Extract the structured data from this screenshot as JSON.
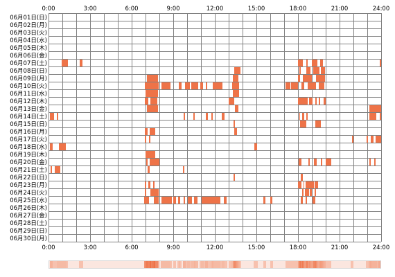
{
  "chart_data": {
    "type": "heatmap",
    "x_ticks": [
      "0:00",
      "3:00",
      "6:00",
      "9:00",
      "12:00",
      "15:00",
      "18:00",
      "21:00",
      "24:00"
    ],
    "x_range_hours": [
      0,
      24
    ],
    "grid": true,
    "rows": [
      {
        "label": "06月01日(日)",
        "spans": []
      },
      {
        "label": "06月02日(月)",
        "spans": []
      },
      {
        "label": "06月03日(火)",
        "spans": []
      },
      {
        "label": "06月04日(水)",
        "spans": []
      },
      {
        "label": "06月05日(木)",
        "spans": []
      },
      {
        "label": "06月06日(金)",
        "spans": []
      },
      {
        "label": "06月07日(土)",
        "spans": [
          [
            0.95,
            1.4
          ],
          [
            2.25,
            2.45
          ],
          [
            18.0,
            18.35
          ],
          [
            18.6,
            18.7
          ],
          [
            19.0,
            19.4
          ],
          [
            19.6,
            19.8
          ],
          [
            23.9,
            24.0
          ]
        ]
      },
      {
        "label": "06月08日(日)",
        "spans": [
          [
            13.4,
            13.85
          ],
          [
            18.1,
            18.2
          ],
          [
            18.6,
            18.9
          ],
          [
            19.1,
            19.55
          ],
          [
            19.65,
            19.95
          ]
        ]
      },
      {
        "label": "06月09日(月)",
        "spans": [
          [
            7.1,
            7.9
          ],
          [
            13.3,
            13.7
          ],
          [
            18.0,
            18.15
          ],
          [
            18.35,
            19.0
          ],
          [
            19.3,
            19.95
          ]
        ]
      },
      {
        "label": "06月10日(火)",
        "spans": [
          [
            6.95,
            7.95
          ],
          [
            8.15,
            8.8
          ],
          [
            9.4,
            9.6
          ],
          [
            9.85,
            10.2
          ],
          [
            10.3,
            10.8
          ],
          [
            10.95,
            11.15
          ],
          [
            11.35,
            11.45
          ],
          [
            11.85,
            12.55
          ],
          [
            13.25,
            13.75
          ],
          [
            17.1,
            17.45
          ],
          [
            17.5,
            18.0
          ],
          [
            18.25,
            18.45
          ],
          [
            18.7,
            19.3
          ],
          [
            19.5,
            19.9
          ]
        ]
      },
      {
        "label": "06月11日(水)",
        "spans": [
          [
            7.0,
            7.9
          ],
          [
            13.3,
            13.75
          ]
        ]
      },
      {
        "label": "06月12日(木)",
        "spans": [
          [
            6.95,
            7.2
          ],
          [
            7.35,
            7.85
          ],
          [
            13.0,
            13.4
          ],
          [
            18.0,
            18.7
          ],
          [
            18.8,
            19.05
          ],
          [
            19.25,
            19.35
          ],
          [
            19.5,
            19.6
          ],
          [
            19.85,
            20.0
          ]
        ]
      },
      {
        "label": "06月13日(金)",
        "spans": [
          [
            7.1,
            7.9
          ],
          [
            13.45,
            13.7
          ],
          [
            23.15,
            24.0
          ]
        ]
      },
      {
        "label": "06月14日(土)",
        "spans": [
          [
            0.1,
            0.4
          ],
          [
            0.6,
            0.7
          ],
          [
            9.75,
            9.85
          ],
          [
            10.45,
            10.55
          ],
          [
            11.35,
            11.5
          ],
          [
            11.75,
            11.85
          ],
          [
            12.5,
            12.7
          ],
          [
            18.1,
            18.15
          ],
          [
            18.3,
            18.45
          ],
          [
            18.6,
            18.7
          ],
          [
            23.15,
            23.65
          ],
          [
            23.9,
            24.0
          ]
        ]
      },
      {
        "label": "06月15日(日)",
        "spans": [
          [
            13.35,
            13.45
          ],
          [
            18.15,
            18.6
          ],
          [
            19.25,
            19.65
          ]
        ]
      },
      {
        "label": "06月16日(月)",
        "spans": [
          [
            6.95,
            7.15
          ],
          [
            7.3,
            7.7
          ],
          [
            13.4,
            13.6
          ]
        ]
      },
      {
        "label": "06月17日(火)",
        "spans": [
          [
            6.95,
            7.05
          ],
          [
            7.25,
            7.35
          ],
          [
            21.9,
            22.0
          ],
          [
            22.95,
            23.05
          ],
          [
            23.25,
            23.45
          ],
          [
            23.6,
            24.0
          ]
        ]
      },
      {
        "label": "06月18日(水)",
        "spans": [
          [
            0.1,
            0.3
          ],
          [
            0.75,
            1.25
          ],
          [
            14.85,
            15.05
          ]
        ]
      },
      {
        "label": "06月19日(木)",
        "spans": [
          [
            7.0,
            7.7
          ]
        ]
      },
      {
        "label": "06月20日(金)",
        "spans": [
          [
            7.05,
            7.15
          ],
          [
            7.3,
            8.0
          ],
          [
            18.05,
            18.25
          ],
          [
            18.75,
            18.85
          ],
          [
            19.15,
            19.35
          ],
          [
            19.65,
            19.75
          ],
          [
            20.0,
            20.4
          ],
          [
            23.15,
            23.25
          ],
          [
            23.5,
            23.6
          ]
        ]
      },
      {
        "label": "06月21日(土)",
        "spans": [
          [
            0.15,
            0.25
          ],
          [
            0.45,
            0.85
          ],
          [
            7.15,
            7.3
          ],
          [
            9.7,
            9.8
          ]
        ]
      },
      {
        "label": "06月22日(日)",
        "spans": [
          [
            13.35,
            13.45
          ],
          [
            18.2,
            18.35
          ]
        ]
      },
      {
        "label": "06月23日(月)",
        "spans": [
          [
            6.95,
            7.05
          ],
          [
            7.2,
            7.35
          ],
          [
            7.55,
            7.65
          ],
          [
            18.0,
            18.25
          ],
          [
            18.4,
            18.45
          ],
          [
            18.55,
            19.15
          ],
          [
            19.2,
            19.45
          ]
        ]
      },
      {
        "label": "06月24日(火)",
        "spans": [
          [
            6.95,
            7.05
          ],
          [
            7.35,
            7.95
          ],
          [
            18.3,
            18.4
          ],
          [
            18.5,
            18.8
          ],
          [
            18.85,
            19.0
          ],
          [
            19.2,
            19.3
          ]
        ]
      },
      {
        "label": "06月25日(水)",
        "spans": [
          [
            6.9,
            7.25
          ],
          [
            7.6,
            7.95
          ],
          [
            8.15,
            8.9
          ],
          [
            9.0,
            9.2
          ],
          [
            9.35,
            9.5
          ],
          [
            9.75,
            9.85
          ],
          [
            10.05,
            10.35
          ],
          [
            10.5,
            10.75
          ],
          [
            11.05,
            12.4
          ],
          [
            12.65,
            12.85
          ],
          [
            15.5,
            15.65
          ],
          [
            16.0,
            16.15
          ],
          [
            18.2,
            18.35
          ],
          [
            18.55,
            18.65
          ],
          [
            19.05,
            19.25
          ]
        ]
      },
      {
        "label": "06月26日(木)",
        "spans": []
      },
      {
        "label": "06月27日(金)",
        "spans": []
      },
      {
        "label": "06月28日(土)",
        "spans": []
      },
      {
        "label": "06月29日(日)",
        "spans": []
      },
      {
        "label": "06月30日(月)",
        "spans": []
      }
    ]
  },
  "colors": {
    "cell": "#ee7348",
    "grid": "#808080",
    "background": "#ffffff",
    "summary_high": "#ee7348",
    "summary_low": "#fbe6df"
  }
}
